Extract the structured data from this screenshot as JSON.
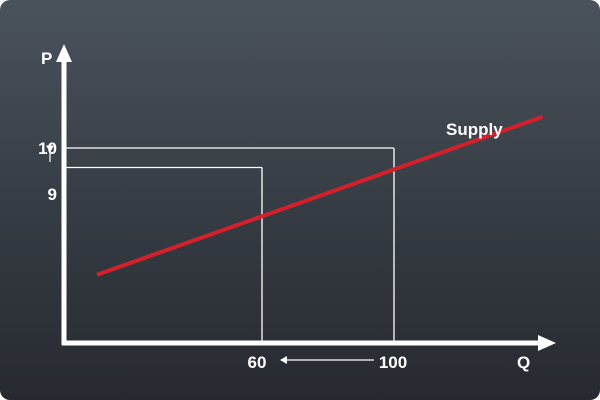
{
  "chart_data": {
    "type": "line",
    "title": "",
    "xlabel": "Q",
    "ylabel": "P",
    "xlim": [
      0,
      145
    ],
    "ylim": [
      0,
      14.5
    ],
    "grid": false,
    "series": [
      {
        "name": "Supply",
        "x": [
          10,
          145
        ],
        "y": [
          3.5,
          11.6
        ]
      }
    ],
    "guides": [
      {
        "x": 100,
        "y": 10
      },
      {
        "x": 60,
        "y": 9
      }
    ],
    "tick_labels": {
      "x": [
        "60",
        "100"
      ],
      "y": [
        "10",
        "9"
      ]
    },
    "arrows": {
      "price_change": {
        "from": 10,
        "to": 9
      },
      "quantity_change": {
        "from": 100,
        "to": 60
      }
    },
    "colors": {
      "series": "#d4202a",
      "axes": "#ffffff",
      "guides": "#ffffff",
      "text": "#ffffff"
    }
  }
}
